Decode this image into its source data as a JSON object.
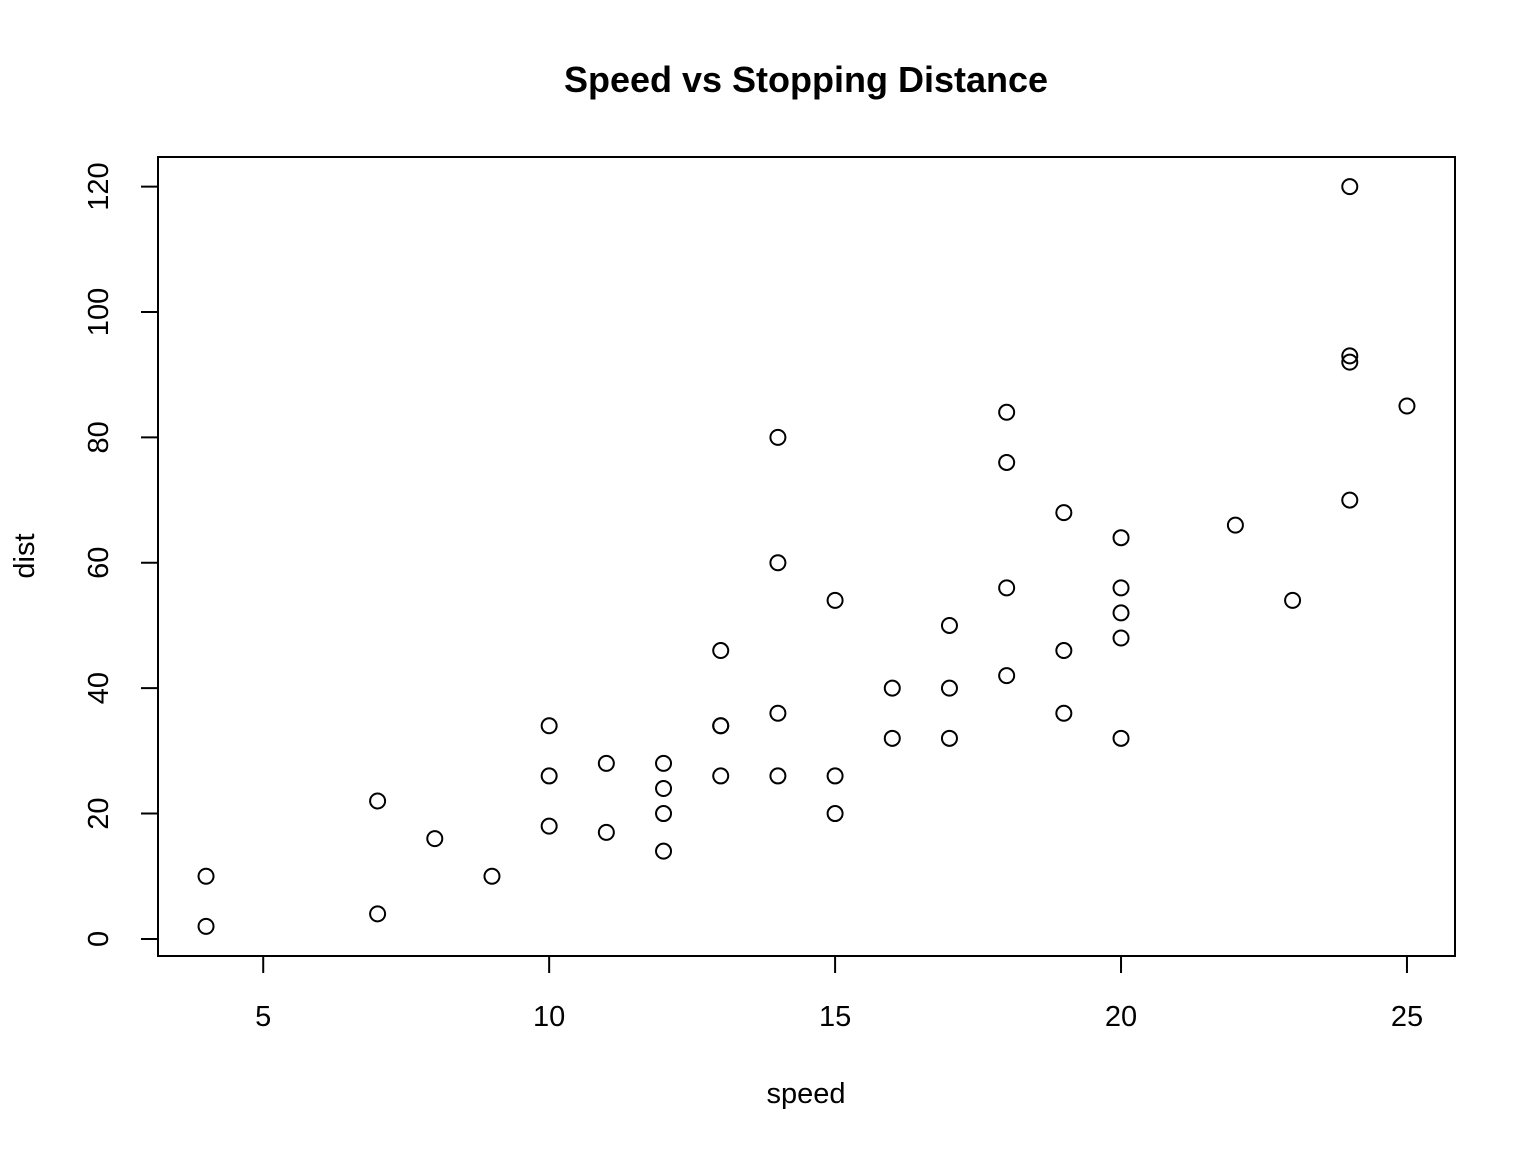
{
  "chart_data": {
    "type": "scatter",
    "title": "Speed vs Stopping Distance",
    "xlabel": "speed",
    "ylabel": "dist",
    "xlim": [
      3.16,
      25.84
    ],
    "ylim": [
      -2.72,
      124.72
    ],
    "xticks": [
      5,
      10,
      15,
      20,
      25
    ],
    "yticks": [
      0,
      20,
      40,
      60,
      80,
      100,
      120
    ],
    "grid": false,
    "legend": "none",
    "marker": "open-circle",
    "color": "#000000",
    "points": [
      {
        "x": 4,
        "y": 2
      },
      {
        "x": 4,
        "y": 10
      },
      {
        "x": 7,
        "y": 4
      },
      {
        "x": 7,
        "y": 22
      },
      {
        "x": 8,
        "y": 16
      },
      {
        "x": 9,
        "y": 10
      },
      {
        "x": 10,
        "y": 18
      },
      {
        "x": 10,
        "y": 26
      },
      {
        "x": 10,
        "y": 34
      },
      {
        "x": 11,
        "y": 17
      },
      {
        "x": 11,
        "y": 28
      },
      {
        "x": 12,
        "y": 14
      },
      {
        "x": 12,
        "y": 20
      },
      {
        "x": 12,
        "y": 24
      },
      {
        "x": 12,
        "y": 28
      },
      {
        "x": 13,
        "y": 26
      },
      {
        "x": 13,
        "y": 34
      },
      {
        "x": 13,
        "y": 34
      },
      {
        "x": 13,
        "y": 46
      },
      {
        "x": 14,
        "y": 26
      },
      {
        "x": 14,
        "y": 36
      },
      {
        "x": 14,
        "y": 60
      },
      {
        "x": 14,
        "y": 80
      },
      {
        "x": 15,
        "y": 20
      },
      {
        "x": 15,
        "y": 26
      },
      {
        "x": 15,
        "y": 54
      },
      {
        "x": 16,
        "y": 32
      },
      {
        "x": 16,
        "y": 40
      },
      {
        "x": 17,
        "y": 32
      },
      {
        "x": 17,
        "y": 40
      },
      {
        "x": 17,
        "y": 50
      },
      {
        "x": 18,
        "y": 42
      },
      {
        "x": 18,
        "y": 56
      },
      {
        "x": 18,
        "y": 76
      },
      {
        "x": 18,
        "y": 84
      },
      {
        "x": 19,
        "y": 36
      },
      {
        "x": 19,
        "y": 46
      },
      {
        "x": 19,
        "y": 68
      },
      {
        "x": 20,
        "y": 32
      },
      {
        "x": 20,
        "y": 48
      },
      {
        "x": 20,
        "y": 52
      },
      {
        "x": 20,
        "y": 56
      },
      {
        "x": 20,
        "y": 64
      },
      {
        "x": 22,
        "y": 66
      },
      {
        "x": 23,
        "y": 54
      },
      {
        "x": 24,
        "y": 70
      },
      {
        "x": 24,
        "y": 92
      },
      {
        "x": 24,
        "y": 93
      },
      {
        "x": 24,
        "y": 120
      },
      {
        "x": 25,
        "y": 85
      }
    ]
  }
}
